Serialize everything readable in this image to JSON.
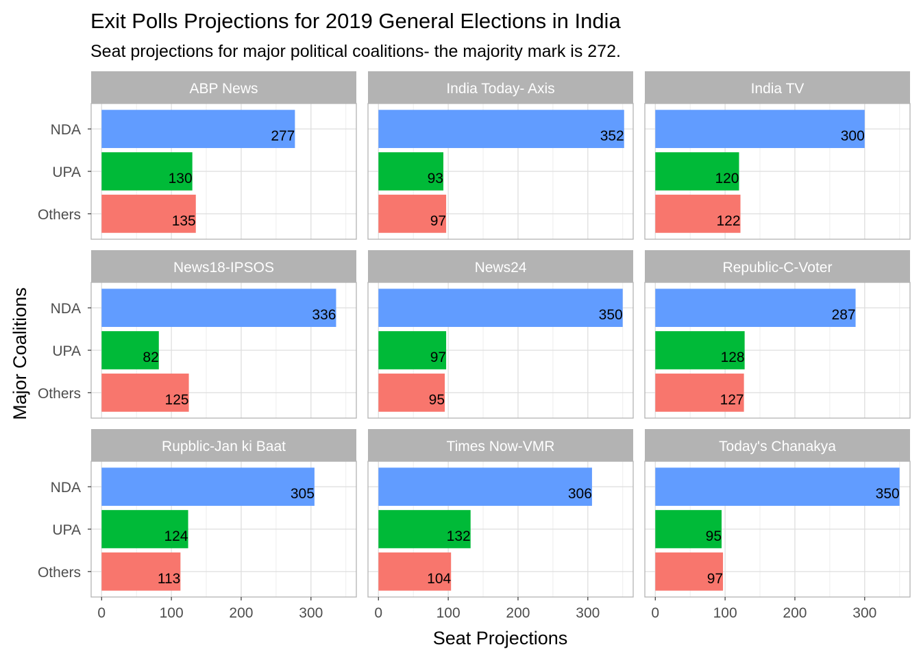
{
  "chart_data": {
    "type": "bar",
    "orientation": "horizontal",
    "facets": "3x3",
    "title": "Exit Polls Projections for 2019 General Elections in India",
    "subtitle": "Seat projections for major political coalitions- the majority mark is 272.",
    "xlabel": "Seat Projections",
    "ylabel": "Major Coalitions",
    "xlim": [
      -15,
      365
    ],
    "xticks": [
      0,
      100,
      200,
      300
    ],
    "grid": true,
    "legend": "none",
    "categories": [
      "NDA",
      "UPA",
      "Others"
    ],
    "colors": {
      "NDA": "#619CFF",
      "UPA": "#00BA38",
      "Others": "#F8766D"
    },
    "panels": [
      {
        "name": "ABP News",
        "values": [
          277,
          130,
          135
        ]
      },
      {
        "name": "India Today- Axis",
        "values": [
          352,
          93,
          97
        ]
      },
      {
        "name": "India TV",
        "values": [
          300,
          120,
          122
        ]
      },
      {
        "name": "News18-IPSOS",
        "values": [
          336,
          82,
          125
        ]
      },
      {
        "name": "News24",
        "values": [
          350,
          97,
          95
        ]
      },
      {
        "name": "Republic-C-Voter",
        "values": [
          287,
          128,
          127
        ]
      },
      {
        "name": "Rupblic-Jan ki Baat",
        "values": [
          305,
          124,
          113
        ]
      },
      {
        "name": "Times Now-VMR",
        "values": [
          306,
          132,
          104
        ]
      },
      {
        "name": "Today's Chanakya",
        "values": [
          350,
          95,
          97
        ]
      }
    ]
  }
}
